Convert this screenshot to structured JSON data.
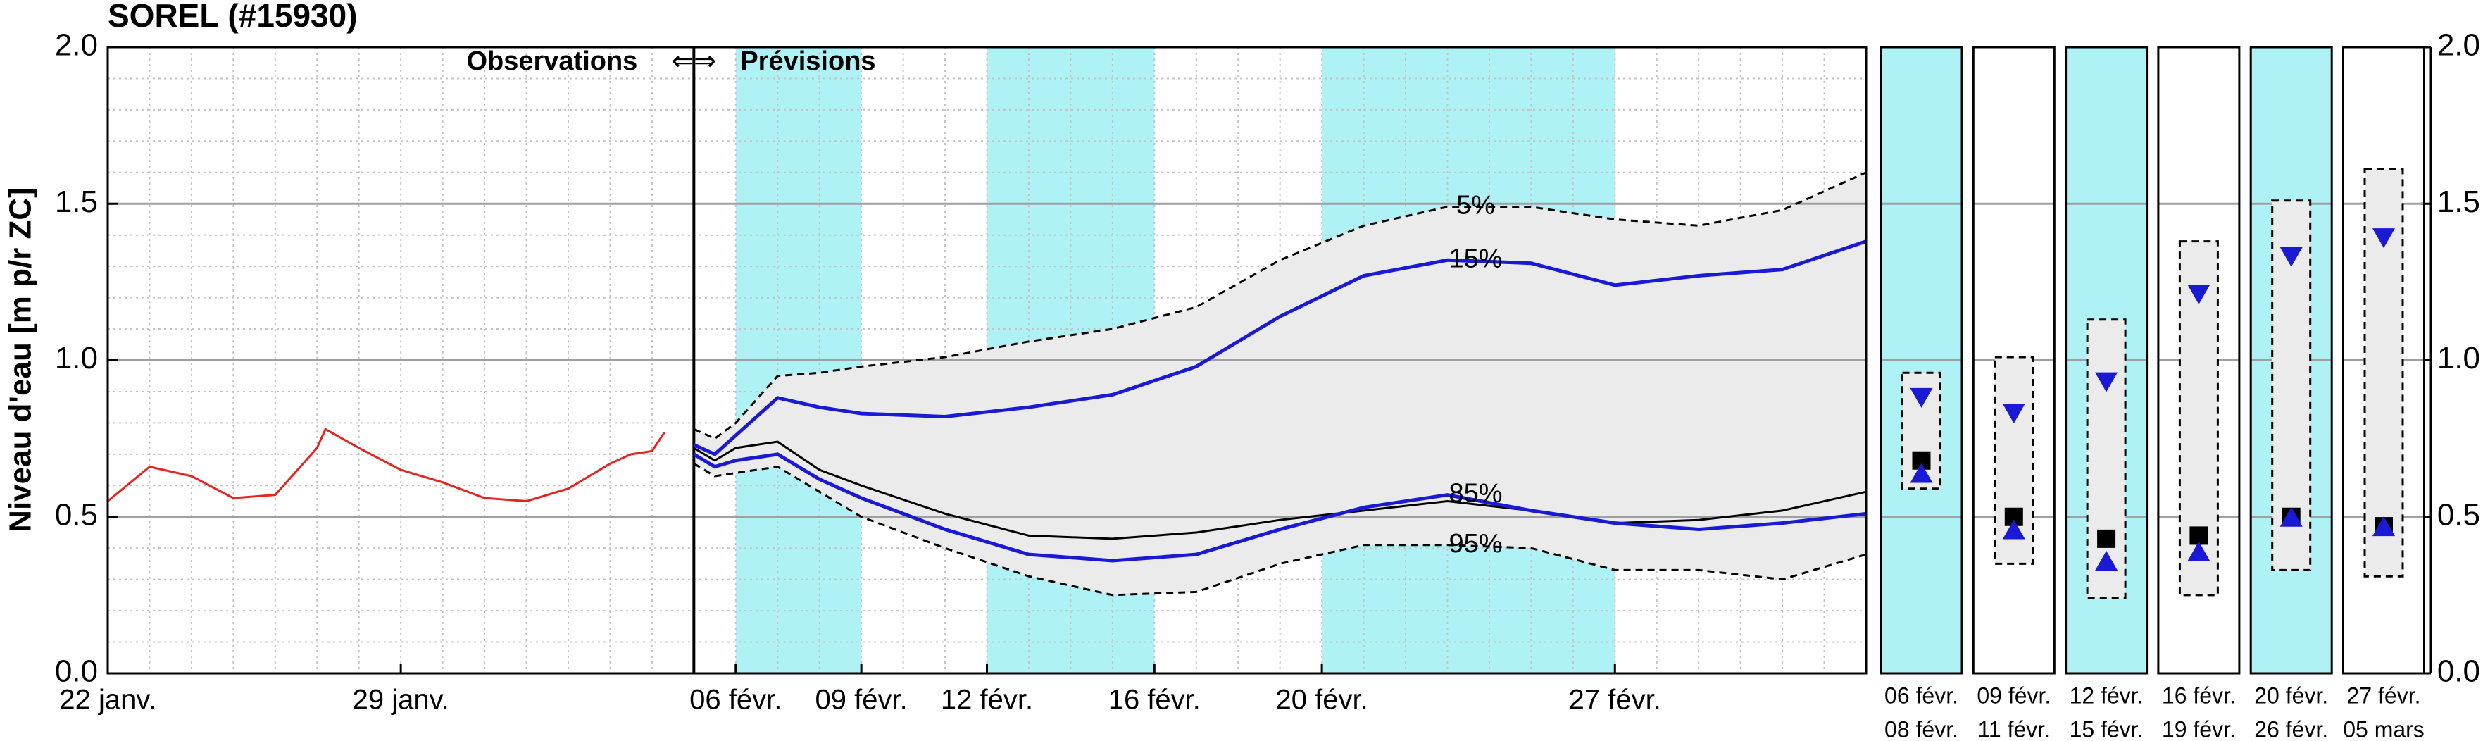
{
  "chart_data": {
    "type": "line",
    "title": "SOREL (#15930)",
    "y_label": "Niveau d'eau [m p/r ZC]",
    "annotations": {
      "observations": "Observations",
      "arrows": "⇐⇒",
      "forecast": "Prévisions"
    },
    "forecast_start": 14,
    "xlim": [
      0,
      42
    ],
    "xticks": [
      {
        "value": 0,
        "label": "22 janv."
      },
      {
        "value": 7,
        "label": "29 janv."
      },
      {
        "value": 15,
        "label": "06 févr."
      },
      {
        "value": 18,
        "label": "09 févr."
      },
      {
        "value": 21,
        "label": "12 févr."
      },
      {
        "value": 25,
        "label": "16 févr."
      },
      {
        "value": 29,
        "label": "20 févr."
      },
      {
        "value": 36,
        "label": "27 févr."
      }
    ],
    "ylim": [
      0,
      2
    ],
    "yticks": [
      {
        "value": 0,
        "label": "0.0"
      },
      {
        "value": 0.5,
        "label": "0.5"
      },
      {
        "value": 1,
        "label": "1.0"
      },
      {
        "value": 1.5,
        "label": "1.5"
      },
      {
        "value": 2,
        "label": "2.0"
      }
    ],
    "grid": true,
    "minor_grid": true,
    "highlight_color": "#aef2f6",
    "band_color": "#ebebeb",
    "highlight_bands": [
      [
        15,
        18
      ],
      [
        21,
        25
      ],
      [
        29,
        36
      ]
    ],
    "series": [
      {
        "color": "#e8231d",
        "style": "solid",
        "x": [
          0,
          1,
          2,
          3,
          4,
          5,
          5.2,
          6,
          7,
          8,
          9,
          10,
          11,
          12,
          12.5,
          13,
          13.3
        ],
        "values": [
          0.55,
          0.66,
          0.63,
          0.56,
          0.57,
          0.72,
          0.78,
          0.72,
          0.65,
          0.61,
          0.56,
          0.55,
          0.59,
          0.67,
          0.7,
          0.71,
          0.77
        ]
      },
      {
        "name": "5%",
        "color": "#000000",
        "style": "dashed",
        "x": [
          14,
          14.5,
          15,
          16,
          17,
          18,
          20,
          22,
          24,
          26,
          28,
          30,
          32,
          34,
          36,
          38,
          40,
          42
        ],
        "values": [
          0.78,
          0.75,
          0.8,
          0.95,
          0.96,
          0.98,
          1.01,
          1.06,
          1.1,
          1.17,
          1.32,
          1.43,
          1.49,
          1.49,
          1.45,
          1.43,
          1.48,
          1.6
        ]
      },
      {
        "name": "15%",
        "color": "#1a1ad6",
        "style": "solid",
        "x": [
          14,
          14.5,
          15,
          16,
          17,
          18,
          20,
          22,
          24,
          26,
          28,
          30,
          32,
          34,
          36,
          38,
          40,
          42
        ],
        "values": [
          0.73,
          0.7,
          0.76,
          0.88,
          0.85,
          0.83,
          0.82,
          0.85,
          0.89,
          0.98,
          1.14,
          1.27,
          1.32,
          1.31,
          1.24,
          1.27,
          1.29,
          1.38
        ]
      },
      {
        "color": "#000000",
        "style": "thin",
        "x": [
          14,
          14.5,
          15,
          16,
          17,
          18,
          20,
          22,
          24,
          26,
          28,
          30,
          32,
          34,
          36,
          38,
          40,
          42
        ],
        "values": [
          0.72,
          0.68,
          0.72,
          0.74,
          0.65,
          0.6,
          0.51,
          0.44,
          0.43,
          0.45,
          0.49,
          0.52,
          0.55,
          0.52,
          0.48,
          0.49,
          0.52,
          0.58
        ]
      },
      {
        "name": "85%",
        "color": "#1a1ad6",
        "style": "solid",
        "x": [
          14,
          14.5,
          15,
          16,
          17,
          18,
          20,
          22,
          24,
          26,
          28,
          30,
          32,
          34,
          36,
          38,
          40,
          42
        ],
        "values": [
          0.7,
          0.66,
          0.68,
          0.7,
          0.62,
          0.56,
          0.46,
          0.38,
          0.36,
          0.38,
          0.46,
          0.53,
          0.57,
          0.52,
          0.48,
          0.46,
          0.48,
          0.51
        ]
      },
      {
        "name": "95%",
        "color": "#000000",
        "style": "dashed",
        "x": [
          14,
          14.5,
          15,
          16,
          17,
          18,
          20,
          22,
          24,
          26,
          28,
          30,
          32,
          34,
          36,
          38,
          40,
          42
        ],
        "values": [
          0.67,
          0.63,
          0.64,
          0.66,
          0.58,
          0.5,
          0.4,
          0.31,
          0.25,
          0.26,
          0.35,
          0.41,
          0.41,
          0.4,
          0.33,
          0.33,
          0.3,
          0.38
        ]
      }
    ],
    "panels": [
      {
        "start": "06 févr.",
        "end": "08 févr.",
        "highlight": true,
        "min": 0.59,
        "max": 0.96,
        "p15": 0.88,
        "median": 0.68,
        "p85": 0.64
      },
      {
        "start": "09 févr.",
        "end": "11 févr.",
        "highlight": false,
        "min": 0.35,
        "max": 1.01,
        "p15": 0.83,
        "median": 0.5,
        "p85": 0.46
      },
      {
        "start": "12 févr.",
        "end": "15 févr.",
        "highlight": true,
        "min": 0.24,
        "max": 1.13,
        "p15": 0.93,
        "median": 0.43,
        "p85": 0.36
      },
      {
        "start": "16 févr.",
        "end": "19 févr.",
        "highlight": false,
        "min": 0.25,
        "max": 1.38,
        "p15": 1.21,
        "median": 0.44,
        "p85": 0.39
      },
      {
        "start": "20 févr.",
        "end": "26 févr.",
        "highlight": true,
        "min": 0.33,
        "max": 1.51,
        "p15": 1.33,
        "median": 0.5,
        "p85": 0.5
      },
      {
        "start": "27 févr.",
        "end": "05 mars",
        "highlight": false,
        "min": 0.31,
        "max": 1.61,
        "p15": 1.39,
        "median": 0.47,
        "p85": 0.47
      }
    ]
  }
}
